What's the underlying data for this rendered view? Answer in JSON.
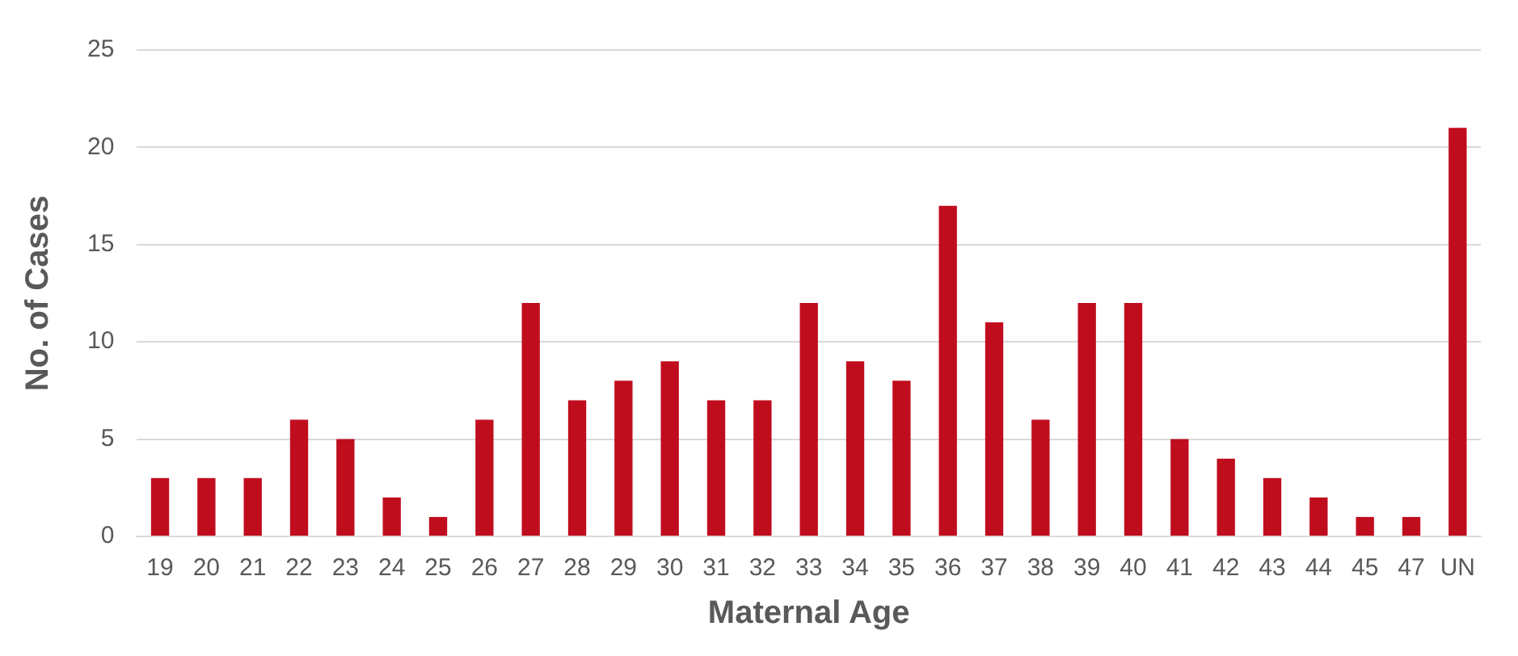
{
  "chart_data": {
    "type": "bar",
    "xlabel": "Maternal Age",
    "ylabel": "No. of Cases",
    "categories": [
      "19",
      "20",
      "21",
      "22",
      "23",
      "24",
      "25",
      "26",
      "27",
      "28",
      "29",
      "30",
      "31",
      "32",
      "33",
      "34",
      "35",
      "36",
      "37",
      "38",
      "39",
      "40",
      "41",
      "42",
      "43",
      "44",
      "45",
      "47",
      "UN"
    ],
    "values": [
      3,
      3,
      3,
      6,
      5,
      2,
      1,
      6,
      12,
      7,
      8,
      9,
      7,
      7,
      12,
      9,
      8,
      17,
      11,
      6,
      12,
      12,
      5,
      4,
      3,
      2,
      1,
      1,
      21
    ],
    "color": "#c00d1e",
    "ylim": [
      0,
      25
    ],
    "yticks": [
      0,
      5,
      10,
      15,
      20,
      25
    ],
    "grid": "y",
    "legend": false
  }
}
